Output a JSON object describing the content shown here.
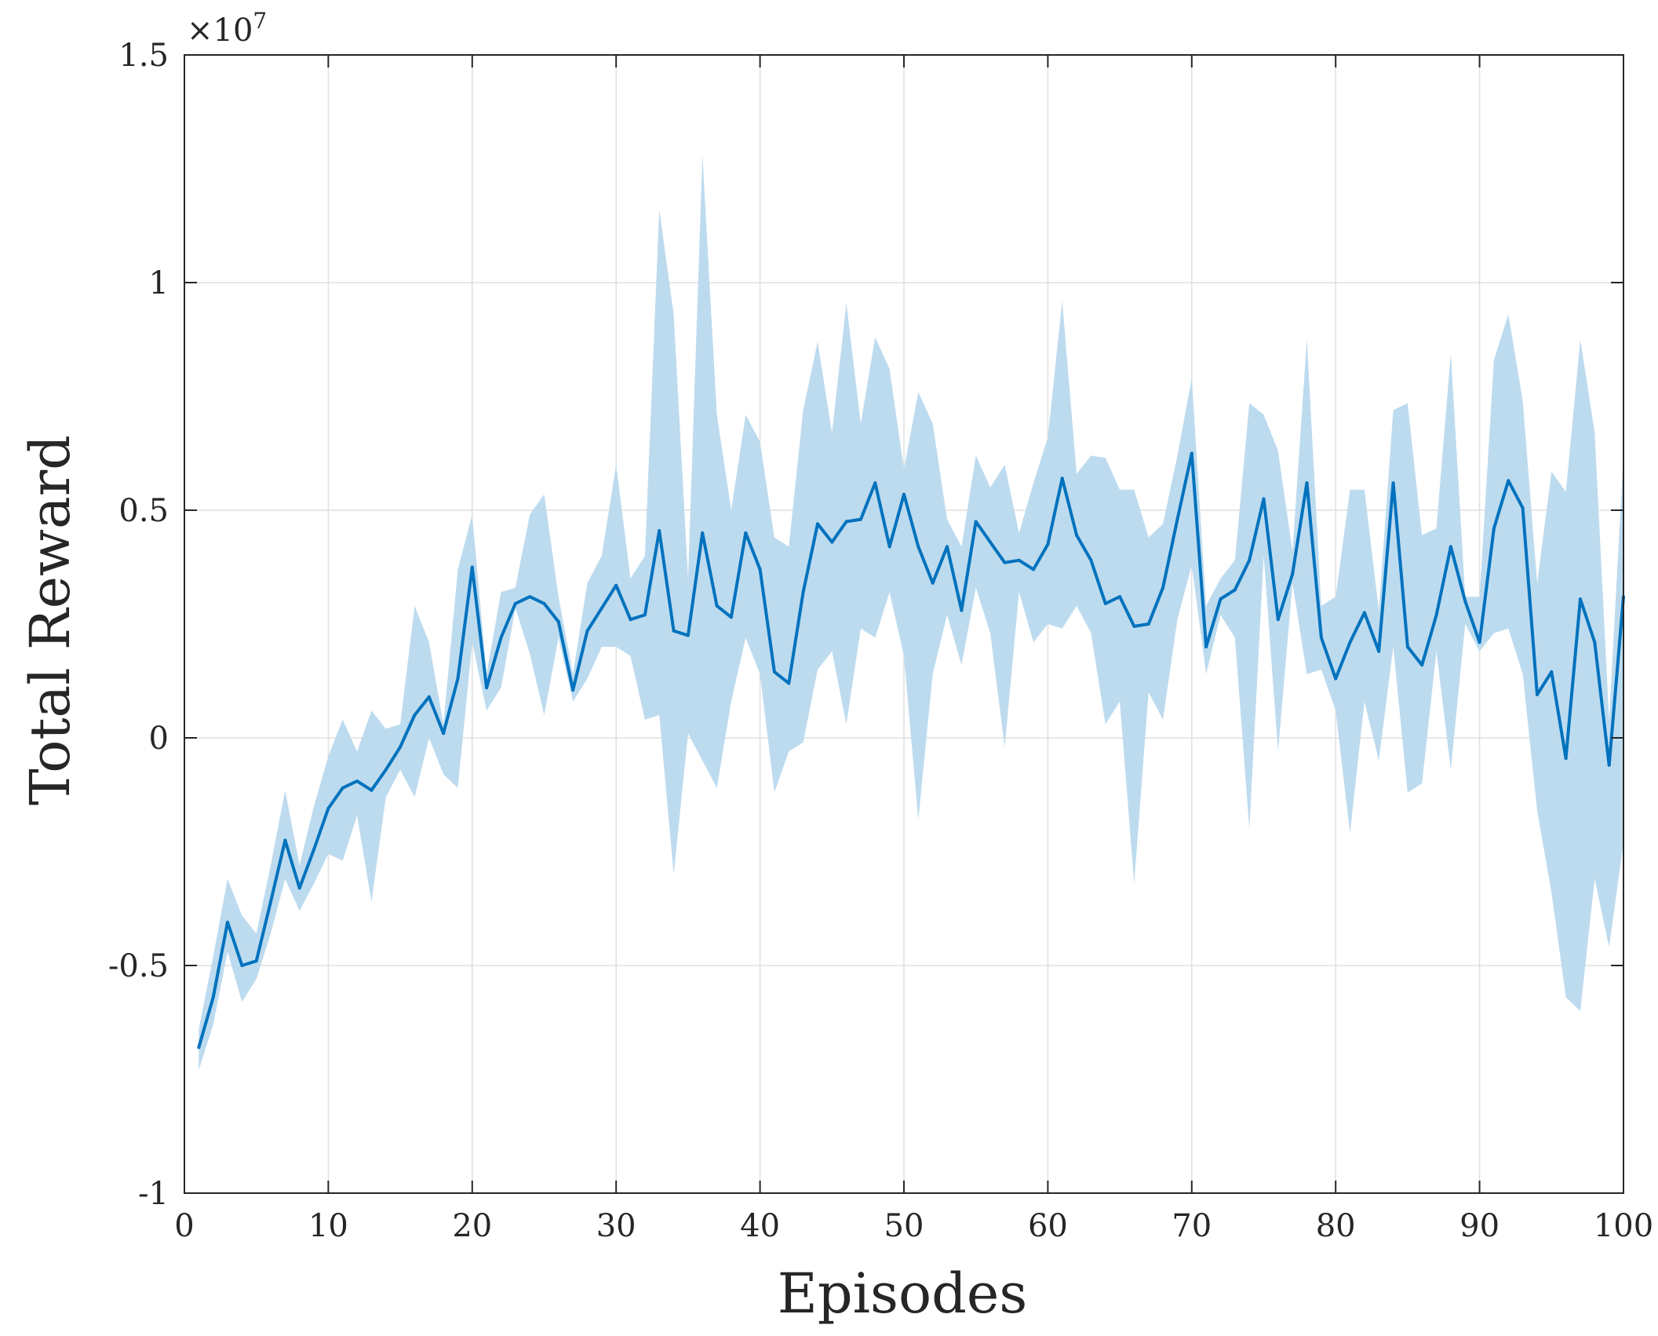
{
  "chart_data": {
    "type": "line",
    "xlabel": "Episodes",
    "ylabel": "Total Reward",
    "y_exponent_label": "×10",
    "y_exponent_power": "7",
    "xlim": [
      0,
      100
    ],
    "ylim": [
      -1,
      1.5
    ],
    "x_ticks": [
      0,
      10,
      20,
      30,
      40,
      50,
      60,
      70,
      80,
      90,
      100
    ],
    "x_tick_labels": [
      "0",
      "10",
      "20",
      "30",
      "40",
      "50",
      "60",
      "70",
      "80",
      "90",
      "100"
    ],
    "y_ticks": [
      -1,
      -0.5,
      0,
      0.5,
      1,
      1.5
    ],
    "y_tick_labels": [
      "-1",
      "-0.5",
      "0",
      "0.5",
      "1",
      "1.5"
    ],
    "grid": true,
    "colors": {
      "line": "#0072BD",
      "band": "#BDDBEF",
      "grid": "#DFDFDF",
      "axis": "#262626"
    },
    "series": [
      {
        "x": [
          1,
          2,
          3,
          4,
          5,
          6,
          7,
          8,
          9,
          10,
          11,
          12,
          13,
          14,
          15,
          16,
          17,
          18,
          19,
          20,
          21,
          22,
          23,
          24,
          25,
          26,
          27,
          28,
          29,
          30,
          31,
          32,
          33,
          34,
          35,
          36,
          37,
          38,
          39,
          40,
          41,
          42,
          43,
          44,
          45,
          46,
          47,
          48,
          49,
          50,
          51,
          52,
          53,
          54,
          55,
          56,
          57,
          58,
          59,
          60,
          61,
          62,
          63,
          64,
          65,
          66,
          67,
          68,
          69,
          70,
          71,
          72,
          73,
          74,
          75,
          76,
          77,
          78,
          79,
          80,
          81,
          82,
          83,
          84,
          85,
          86,
          87,
          88,
          89,
          90,
          91,
          92,
          93,
          94,
          95,
          96,
          97,
          98,
          99,
          100
        ],
        "mean": [
          -0.68,
          -0.57,
          -0.405,
          -0.5,
          -0.49,
          -0.36,
          -0.225,
          -0.33,
          -0.245,
          -0.155,
          -0.11,
          -0.095,
          -0.115,
          -0.07,
          -0.02,
          0.05,
          0.09,
          0.01,
          0.13,
          0.375,
          0.11,
          0.22,
          0.295,
          0.31,
          0.295,
          0.255,
          0.105,
          0.235,
          0.285,
          0.335,
          0.26,
          0.27,
          0.455,
          0.235,
          0.225,
          0.45,
          0.29,
          0.265,
          0.45,
          0.37,
          0.145,
          0.12,
          0.32,
          0.47,
          0.43,
          0.475,
          0.48,
          0.56,
          0.42,
          0.535,
          0.42,
          0.34,
          0.42,
          0.28,
          0.475,
          0.43,
          0.385,
          0.39,
          0.37,
          0.425,
          0.57,
          0.445,
          0.39,
          0.295,
          0.31,
          0.245,
          0.25,
          0.33,
          0.48,
          0.625,
          0.2,
          0.305,
          0.325,
          0.39,
          0.525,
          0.26,
          0.36,
          0.56,
          0.22,
          0.13,
          0.21,
          0.275,
          0.19,
          0.56,
          0.2,
          0.16,
          0.27,
          0.42,
          0.3,
          0.21,
          0.46,
          0.565,
          0.505,
          0.095,
          0.145,
          -0.045,
          0.305,
          0.21,
          -0.06,
          0.31
        ],
        "upper": [
          -0.64,
          -0.48,
          -0.31,
          -0.39,
          -0.43,
          -0.28,
          -0.115,
          -0.28,
          -0.15,
          -0.04,
          0.04,
          -0.03,
          0.06,
          0.02,
          0.03,
          0.29,
          0.21,
          0.03,
          0.37,
          0.49,
          0.14,
          0.32,
          0.33,
          0.49,
          0.535,
          0.31,
          0.14,
          0.34,
          0.4,
          0.6,
          0.35,
          0.4,
          1.16,
          0.93,
          0.35,
          1.28,
          0.71,
          0.5,
          0.71,
          0.65,
          0.44,
          0.42,
          0.72,
          0.87,
          0.67,
          0.955,
          0.69,
          0.88,
          0.81,
          0.59,
          0.76,
          0.69,
          0.48,
          0.42,
          0.62,
          0.55,
          0.6,
          0.45,
          0.56,
          0.66,
          0.96,
          0.58,
          0.62,
          0.615,
          0.545,
          0.545,
          0.44,
          0.47,
          0.62,
          0.79,
          0.29,
          0.35,
          0.39,
          0.735,
          0.71,
          0.63,
          0.41,
          0.875,
          0.29,
          0.31,
          0.545,
          0.545,
          0.28,
          0.72,
          0.735,
          0.445,
          0.46,
          0.845,
          0.31,
          0.31,
          0.83,
          0.93,
          0.74,
          0.34,
          0.585,
          0.54,
          0.875,
          0.67,
          0.04,
          0.62
        ],
        "lower": [
          -0.73,
          -0.63,
          -0.47,
          -0.58,
          -0.53,
          -0.43,
          -0.31,
          -0.38,
          -0.32,
          -0.255,
          -0.27,
          -0.17,
          -0.36,
          -0.13,
          -0.07,
          -0.13,
          0.0,
          -0.08,
          -0.11,
          0.21,
          0.06,
          0.11,
          0.285,
          0.185,
          0.05,
          0.22,
          0.08,
          0.13,
          0.2,
          0.2,
          0.18,
          0.04,
          0.05,
          -0.3,
          0.01,
          -0.05,
          -0.11,
          0.08,
          0.22,
          0.14,
          -0.12,
          -0.03,
          -0.01,
          0.15,
          0.19,
          0.03,
          0.24,
          0.22,
          0.32,
          0.18,
          -0.18,
          0.14,
          0.27,
          0.16,
          0.33,
          0.23,
          -0.02,
          0.32,
          0.21,
          0.25,
          0.24,
          0.29,
          0.23,
          0.03,
          0.08,
          -0.32,
          0.1,
          0.04,
          0.26,
          0.38,
          0.14,
          0.27,
          0.22,
          -0.2,
          0.4,
          -0.03,
          0.34,
          0.14,
          0.15,
          0.06,
          -0.21,
          0.08,
          -0.05,
          0.2,
          -0.12,
          -0.1,
          0.19,
          -0.07,
          0.25,
          0.19,
          0.23,
          0.24,
          0.14,
          -0.16,
          -0.34,
          -0.57,
          -0.6,
          -0.31,
          -0.46,
          -0.23
        ]
      }
    ]
  }
}
